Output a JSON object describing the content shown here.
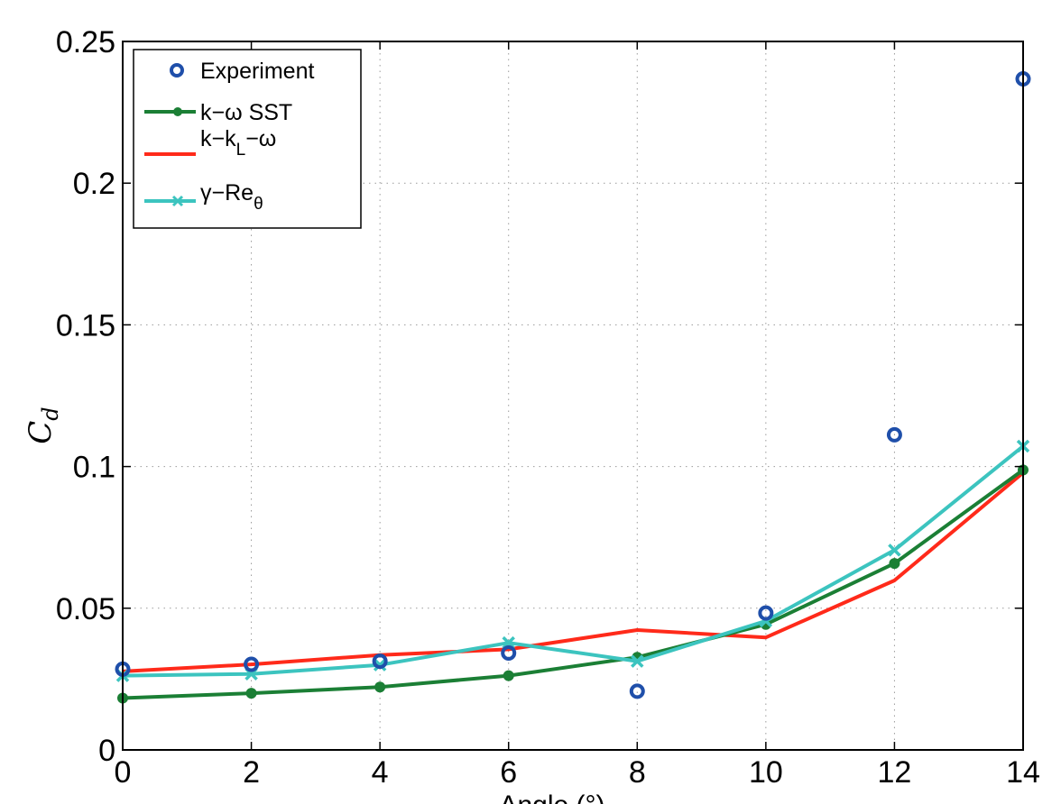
{
  "chart_data": {
    "type": "line",
    "xlabel": "Angle (°)",
    "ylabel": "C_d",
    "xlim": [
      0,
      14
    ],
    "ylim": [
      0,
      0.25
    ],
    "xticks": [
      "0",
      "2",
      "4",
      "6",
      "8",
      "10",
      "12",
      "14"
    ],
    "yticks": [
      "0",
      "0.05",
      "0.1",
      "0.15",
      "0.2",
      "0.25"
    ],
    "grid": true,
    "legend_position": "top-left",
    "series": [
      {
        "name": "Experiment",
        "style": "markers-circle",
        "color": "#1f4faa",
        "x": [
          0,
          2,
          4,
          6,
          8,
          10,
          12,
          14
        ],
        "y": [
          0.0285,
          0.0302,
          0.0313,
          0.0342,
          0.0207,
          0.0483,
          0.1112,
          0.2368
        ]
      },
      {
        "name": "k–ω SST",
        "style": "line-dot",
        "color": "#1b7f35",
        "x": [
          0,
          2,
          4,
          6,
          8,
          10,
          12,
          14
        ],
        "y": [
          0.0183,
          0.02,
          0.0222,
          0.0262,
          0.0327,
          0.0443,
          0.0658,
          0.0988
        ]
      },
      {
        "name": "k–k_L–ω",
        "style": "line",
        "color": "#ff2a1a",
        "x": [
          0,
          2,
          4,
          6,
          8,
          10,
          12,
          14
        ],
        "y": [
          0.0277,
          0.0302,
          0.0335,
          0.0355,
          0.0423,
          0.0397,
          0.0598,
          0.0978
        ]
      },
      {
        "name": "γ–Re_θ",
        "style": "line-x",
        "color": "#3cc4bf",
        "x": [
          0,
          2,
          4,
          6,
          8,
          10,
          12,
          14
        ],
        "y": [
          0.0262,
          0.0268,
          0.03,
          0.0378,
          0.0313,
          0.0455,
          0.0705,
          0.1072
        ]
      }
    ]
  },
  "labels": {
    "ylabel_main": "C",
    "ylabel_sub": "d",
    "xlabel": "Angle (°)",
    "legend": {
      "experiment": "Experiment",
      "sst": "k−ω SST",
      "kkl_a": "k−k",
      "kkl_sub": "L",
      "kkl_b": "−ω",
      "gamma_main": "γ−Re",
      "gamma_sub": "θ"
    }
  }
}
